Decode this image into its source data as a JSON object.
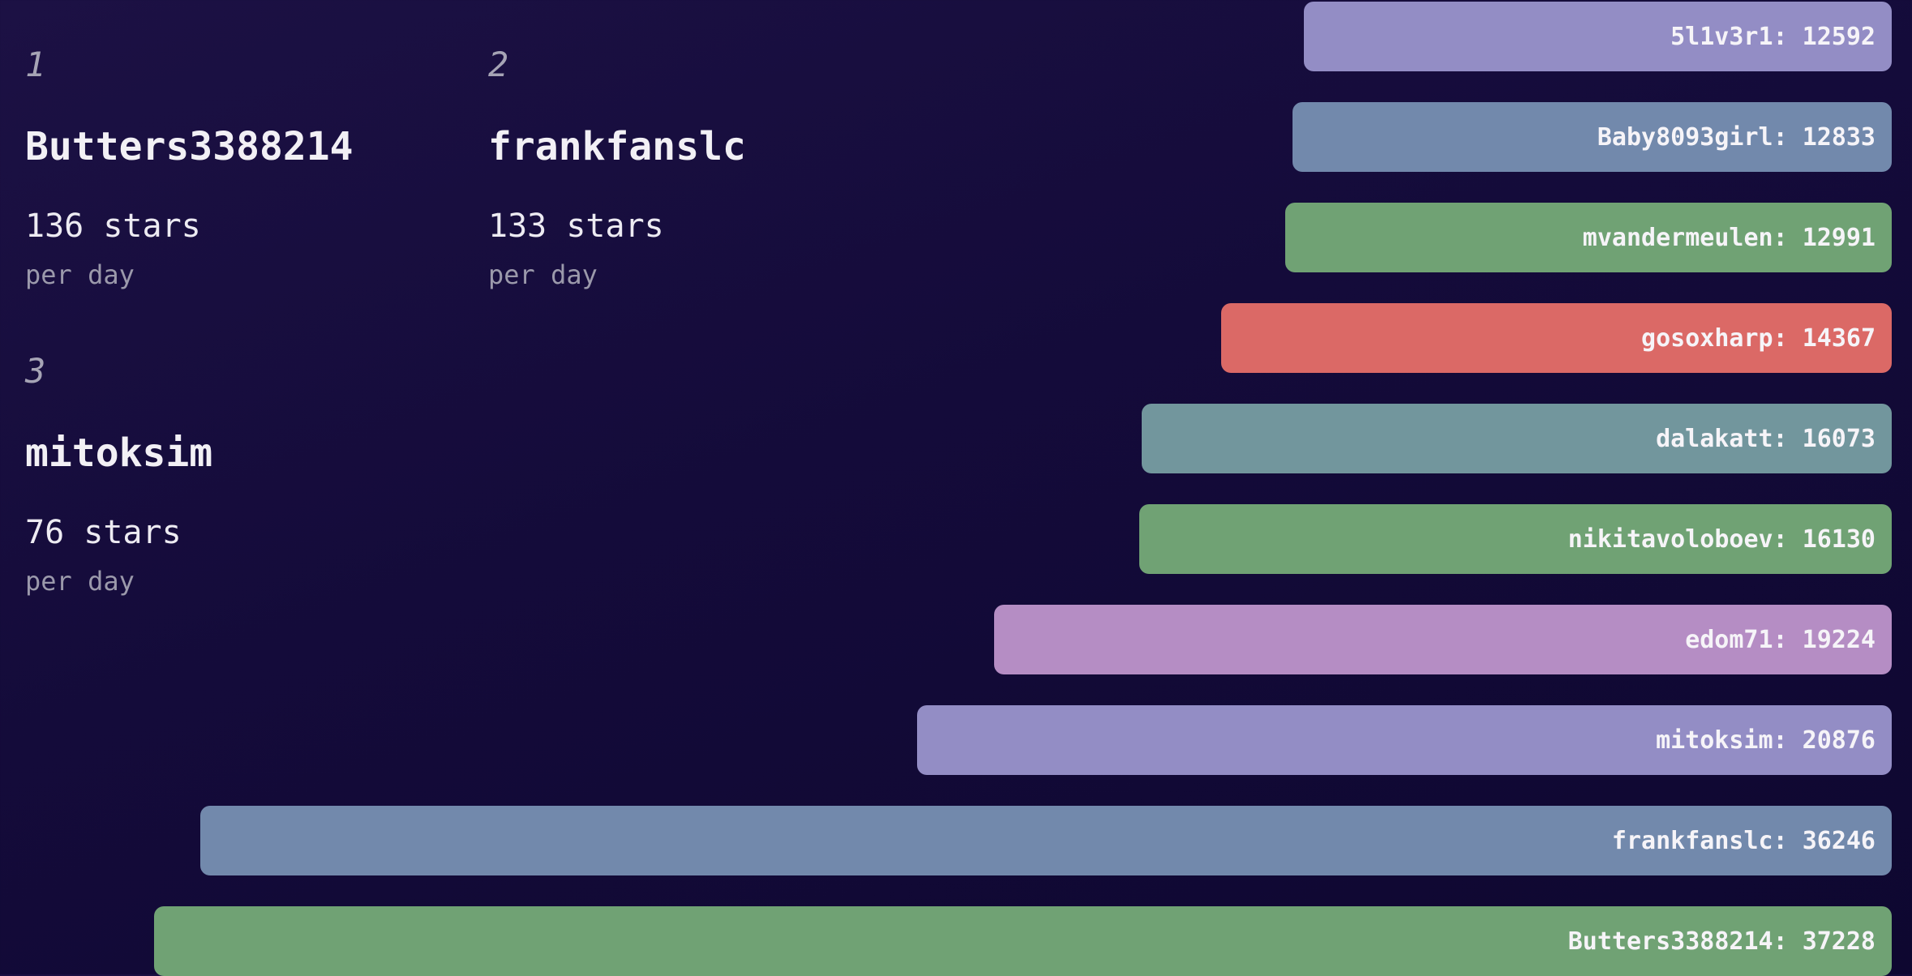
{
  "chart_data": {
    "type": "bar",
    "orientation": "horizontal",
    "title": "",
    "xlabel": "",
    "ylabel": "",
    "value_axis_range": [
      0,
      37228
    ],
    "bar_alignment": "right",
    "order": "smallest-at-top, largest-at-bottom",
    "label_format": "name: value",
    "bars": [
      {
        "name": "5l1v3r1",
        "value": 12592,
        "color": "#938dc5"
      },
      {
        "name": "Baby8093girl",
        "value": 12833,
        "color": "#7289ac"
      },
      {
        "name": "mvandermeulen",
        "value": 12991,
        "color": "#70a274"
      },
      {
        "name": "gosoxharp",
        "value": 14367,
        "color": "#db6966"
      },
      {
        "name": "dalakatt",
        "value": 16073,
        "color": "#72969d"
      },
      {
        "name": "nikitavoloboev",
        "value": 16130,
        "color": "#70a274"
      },
      {
        "name": "edom71",
        "value": 19224,
        "color": "#b58dc4"
      },
      {
        "name": "mitoksim",
        "value": 20876,
        "color": "#938dc5"
      },
      {
        "name": "frankfanslc",
        "value": 36246,
        "color": "#7289ac"
      },
      {
        "name": "Butters3388214",
        "value": 37228,
        "color": "#70a274"
      }
    ]
  },
  "leaderboard": {
    "cards": [
      {
        "rank": "1",
        "name": "Butters3388214",
        "rate": "136 stars",
        "unit": "per day"
      },
      {
        "rank": "2",
        "name": "frankfanslc",
        "rate": "133 stars",
        "unit": "per day"
      },
      {
        "rank": "3",
        "name": "mitoksim",
        "rate": "76 stars",
        "unit": "per day"
      }
    ]
  },
  "colors": {
    "background": "#140b3a",
    "bar_label_text": "#f6f4f8",
    "card_name_text": "#f2f0f5",
    "card_rate_text": "#edebf2",
    "card_unit_text": "#9b99ab",
    "card_rank_text": "#a6a4b5"
  }
}
